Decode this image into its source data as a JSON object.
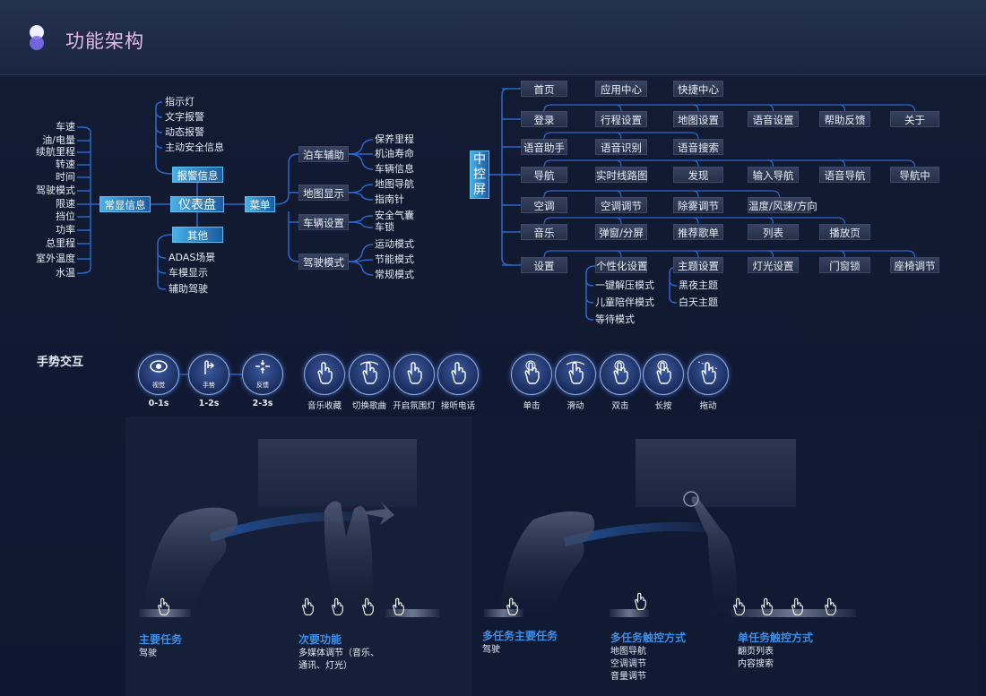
{
  "header": {
    "title": "功能架构",
    "accent_color": "#e7b9e6"
  },
  "dashboard": {
    "root": "仪表盘",
    "constant": {
      "label": "常显信息",
      "items": [
        "车速",
        "油/电量",
        "续航里程",
        "转速",
        "时间",
        "驾驶模式",
        "限速",
        "挡位",
        "功率",
        "总里程",
        "室外温度",
        "水温"
      ]
    },
    "alarm": {
      "label": "报警信息",
      "items": [
        "指示灯",
        "文字报警",
        "动态报警",
        "主动安全信息"
      ]
    },
    "other": {
      "label": "其他",
      "items": [
        "ADAS场景",
        "车模显示",
        "辅助驾驶"
      ]
    },
    "menu": {
      "label": "菜单",
      "groups": [
        {
          "label": "泊车辅助",
          "items": [
            "保养里程",
            "机油寿命",
            "车辆信息"
          ]
        },
        {
          "label": "地图显示",
          "items": [
            "地图导航",
            "指南针"
          ]
        },
        {
          "label": "车辆设置",
          "items": [
            "安全气囊",
            "车锁"
          ]
        },
        {
          "label": "驾驶模式",
          "items": [
            "运动模式",
            "节能模式",
            "常规模式"
          ]
        }
      ]
    }
  },
  "center_console": {
    "root": "中控屏",
    "rows": [
      [
        "首页",
        "应用中心",
        "快捷中心"
      ],
      [
        "登录",
        "行程设置",
        "地图设置",
        "语音设置",
        "帮助反馈",
        "关于"
      ],
      [
        "语音助手",
        "语音识别",
        "语音搜索"
      ],
      [
        "导航",
        "实时线路图",
        "发现",
        "输入导航",
        "语音导航",
        "导航中"
      ],
      [
        "空调",
        "空调调节",
        "除雾调节",
        "温度/风速/方向"
      ],
      [
        "音乐",
        "弹窗/分屏",
        "推荐歌单",
        "列表",
        "播放页"
      ],
      [
        "设置",
        "个性化设置",
        "主题设置",
        "灯光设置",
        "门窗锁",
        "座椅调节"
      ]
    ],
    "personal_items": [
      "一键解压模式",
      "儿童陪伴模式",
      "等待模式"
    ],
    "theme_items": [
      "黑夜主题",
      "白天主题"
    ]
  },
  "gestures": {
    "title": "手势交互",
    "phases": [
      {
        "label": "视觉",
        "time": "0-1s",
        "icon": "eye-icon"
      },
      {
        "label": "手势",
        "time": "1-2s",
        "icon": "gesture-hand-icon"
      },
      {
        "label": "反馈",
        "time": "2-3s",
        "icon": "feedback-arrows-icon"
      }
    ],
    "actions": [
      {
        "label": "音乐收藏",
        "icon": "thumbs-up-icon"
      },
      {
        "label": "切换歌曲",
        "icon": "palm-swipe-icon"
      },
      {
        "label": "开启氛围灯",
        "icon": "finger-heart-icon"
      },
      {
        "label": "接听电话",
        "icon": "call-gesture-icon"
      }
    ],
    "touches": [
      {
        "label": "单击",
        "icon": "tap-icon"
      },
      {
        "label": "滑动",
        "icon": "swipe-icon"
      },
      {
        "label": "双击",
        "icon": "double-tap-icon"
      },
      {
        "label": "长按",
        "icon": "long-press-icon"
      },
      {
        "label": "拖动",
        "icon": "drag-icon"
      }
    ]
  },
  "scenes": [
    {
      "title": "主要任务",
      "lines": [
        "驾驶"
      ]
    },
    {
      "title": "次要功能",
      "lines": [
        "多媒体调节（音乐、",
        "通讯、灯光）"
      ]
    },
    {
      "title": "多任务主要任务",
      "lines": [
        "驾驶"
      ]
    },
    {
      "title": "多任务触控方式",
      "lines": [
        "地图导航",
        "空调调节",
        "音量调节"
      ]
    },
    {
      "title": "单任务触控方式",
      "lines": [
        "翻页列表",
        "内容搜索"
      ]
    }
  ],
  "colors": {
    "label_blue": "#3b8fe8",
    "line_blue": "#2a67c8",
    "highlight": "#49b0e8"
  }
}
